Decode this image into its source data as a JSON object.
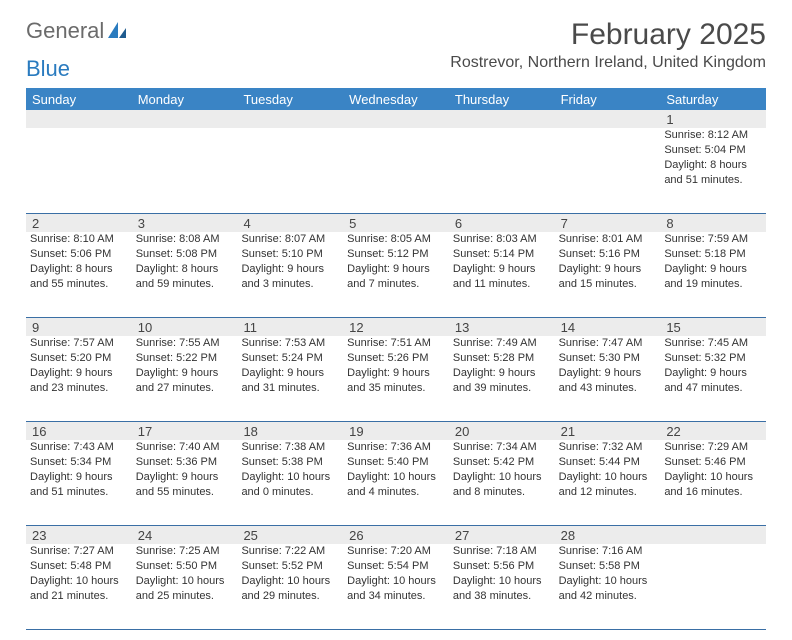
{
  "brand": {
    "part1": "General",
    "part2": "Blue"
  },
  "title": "February 2025",
  "location": "Rostrevor, Northern Ireland, United Kingdom",
  "colors": {
    "header_bar": "#3a84c5",
    "header_text": "#ffffff",
    "day_band": "#ececec",
    "row_divider": "#3a6fa5",
    "body_bg": "#ffffff",
    "logo_gray": "#6b6b6b",
    "logo_blue": "#2a7bbf",
    "title_color": "#4a4a4a",
    "cell_text": "#333333"
  },
  "weekdays": [
    "Sunday",
    "Monday",
    "Tuesday",
    "Wednesday",
    "Thursday",
    "Friday",
    "Saturday"
  ],
  "weeks": [
    {
      "nums": [
        "",
        "",
        "",
        "",
        "",
        "",
        "1"
      ],
      "cells": [
        null,
        null,
        null,
        null,
        null,
        null,
        {
          "sr": "Sunrise: 8:12 AM",
          "ss": "Sunset: 5:04 PM",
          "d1": "Daylight: 8 hours",
          "d2": "and 51 minutes."
        }
      ]
    },
    {
      "nums": [
        "2",
        "3",
        "4",
        "5",
        "6",
        "7",
        "8"
      ],
      "cells": [
        {
          "sr": "Sunrise: 8:10 AM",
          "ss": "Sunset: 5:06 PM",
          "d1": "Daylight: 8 hours",
          "d2": "and 55 minutes."
        },
        {
          "sr": "Sunrise: 8:08 AM",
          "ss": "Sunset: 5:08 PM",
          "d1": "Daylight: 8 hours",
          "d2": "and 59 minutes."
        },
        {
          "sr": "Sunrise: 8:07 AM",
          "ss": "Sunset: 5:10 PM",
          "d1": "Daylight: 9 hours",
          "d2": "and 3 minutes."
        },
        {
          "sr": "Sunrise: 8:05 AM",
          "ss": "Sunset: 5:12 PM",
          "d1": "Daylight: 9 hours",
          "d2": "and 7 minutes."
        },
        {
          "sr": "Sunrise: 8:03 AM",
          "ss": "Sunset: 5:14 PM",
          "d1": "Daylight: 9 hours",
          "d2": "and 11 minutes."
        },
        {
          "sr": "Sunrise: 8:01 AM",
          "ss": "Sunset: 5:16 PM",
          "d1": "Daylight: 9 hours",
          "d2": "and 15 minutes."
        },
        {
          "sr": "Sunrise: 7:59 AM",
          "ss": "Sunset: 5:18 PM",
          "d1": "Daylight: 9 hours",
          "d2": "and 19 minutes."
        }
      ]
    },
    {
      "nums": [
        "9",
        "10",
        "11",
        "12",
        "13",
        "14",
        "15"
      ],
      "cells": [
        {
          "sr": "Sunrise: 7:57 AM",
          "ss": "Sunset: 5:20 PM",
          "d1": "Daylight: 9 hours",
          "d2": "and 23 minutes."
        },
        {
          "sr": "Sunrise: 7:55 AM",
          "ss": "Sunset: 5:22 PM",
          "d1": "Daylight: 9 hours",
          "d2": "and 27 minutes."
        },
        {
          "sr": "Sunrise: 7:53 AM",
          "ss": "Sunset: 5:24 PM",
          "d1": "Daylight: 9 hours",
          "d2": "and 31 minutes."
        },
        {
          "sr": "Sunrise: 7:51 AM",
          "ss": "Sunset: 5:26 PM",
          "d1": "Daylight: 9 hours",
          "d2": "and 35 minutes."
        },
        {
          "sr": "Sunrise: 7:49 AM",
          "ss": "Sunset: 5:28 PM",
          "d1": "Daylight: 9 hours",
          "d2": "and 39 minutes."
        },
        {
          "sr": "Sunrise: 7:47 AM",
          "ss": "Sunset: 5:30 PM",
          "d1": "Daylight: 9 hours",
          "d2": "and 43 minutes."
        },
        {
          "sr": "Sunrise: 7:45 AM",
          "ss": "Sunset: 5:32 PM",
          "d1": "Daylight: 9 hours",
          "d2": "and 47 minutes."
        }
      ]
    },
    {
      "nums": [
        "16",
        "17",
        "18",
        "19",
        "20",
        "21",
        "22"
      ],
      "cells": [
        {
          "sr": "Sunrise: 7:43 AM",
          "ss": "Sunset: 5:34 PM",
          "d1": "Daylight: 9 hours",
          "d2": "and 51 minutes."
        },
        {
          "sr": "Sunrise: 7:40 AM",
          "ss": "Sunset: 5:36 PM",
          "d1": "Daylight: 9 hours",
          "d2": "and 55 minutes."
        },
        {
          "sr": "Sunrise: 7:38 AM",
          "ss": "Sunset: 5:38 PM",
          "d1": "Daylight: 10 hours",
          "d2": "and 0 minutes."
        },
        {
          "sr": "Sunrise: 7:36 AM",
          "ss": "Sunset: 5:40 PM",
          "d1": "Daylight: 10 hours",
          "d2": "and 4 minutes."
        },
        {
          "sr": "Sunrise: 7:34 AM",
          "ss": "Sunset: 5:42 PM",
          "d1": "Daylight: 10 hours",
          "d2": "and 8 minutes."
        },
        {
          "sr": "Sunrise: 7:32 AM",
          "ss": "Sunset: 5:44 PM",
          "d1": "Daylight: 10 hours",
          "d2": "and 12 minutes."
        },
        {
          "sr": "Sunrise: 7:29 AM",
          "ss": "Sunset: 5:46 PM",
          "d1": "Daylight: 10 hours",
          "d2": "and 16 minutes."
        }
      ]
    },
    {
      "nums": [
        "23",
        "24",
        "25",
        "26",
        "27",
        "28",
        ""
      ],
      "cells": [
        {
          "sr": "Sunrise: 7:27 AM",
          "ss": "Sunset: 5:48 PM",
          "d1": "Daylight: 10 hours",
          "d2": "and 21 minutes."
        },
        {
          "sr": "Sunrise: 7:25 AM",
          "ss": "Sunset: 5:50 PM",
          "d1": "Daylight: 10 hours",
          "d2": "and 25 minutes."
        },
        {
          "sr": "Sunrise: 7:22 AM",
          "ss": "Sunset: 5:52 PM",
          "d1": "Daylight: 10 hours",
          "d2": "and 29 minutes."
        },
        {
          "sr": "Sunrise: 7:20 AM",
          "ss": "Sunset: 5:54 PM",
          "d1": "Daylight: 10 hours",
          "d2": "and 34 minutes."
        },
        {
          "sr": "Sunrise: 7:18 AM",
          "ss": "Sunset: 5:56 PM",
          "d1": "Daylight: 10 hours",
          "d2": "and 38 minutes."
        },
        {
          "sr": "Sunrise: 7:16 AM",
          "ss": "Sunset: 5:58 PM",
          "d1": "Daylight: 10 hours",
          "d2": "and 42 minutes."
        },
        null
      ]
    }
  ]
}
